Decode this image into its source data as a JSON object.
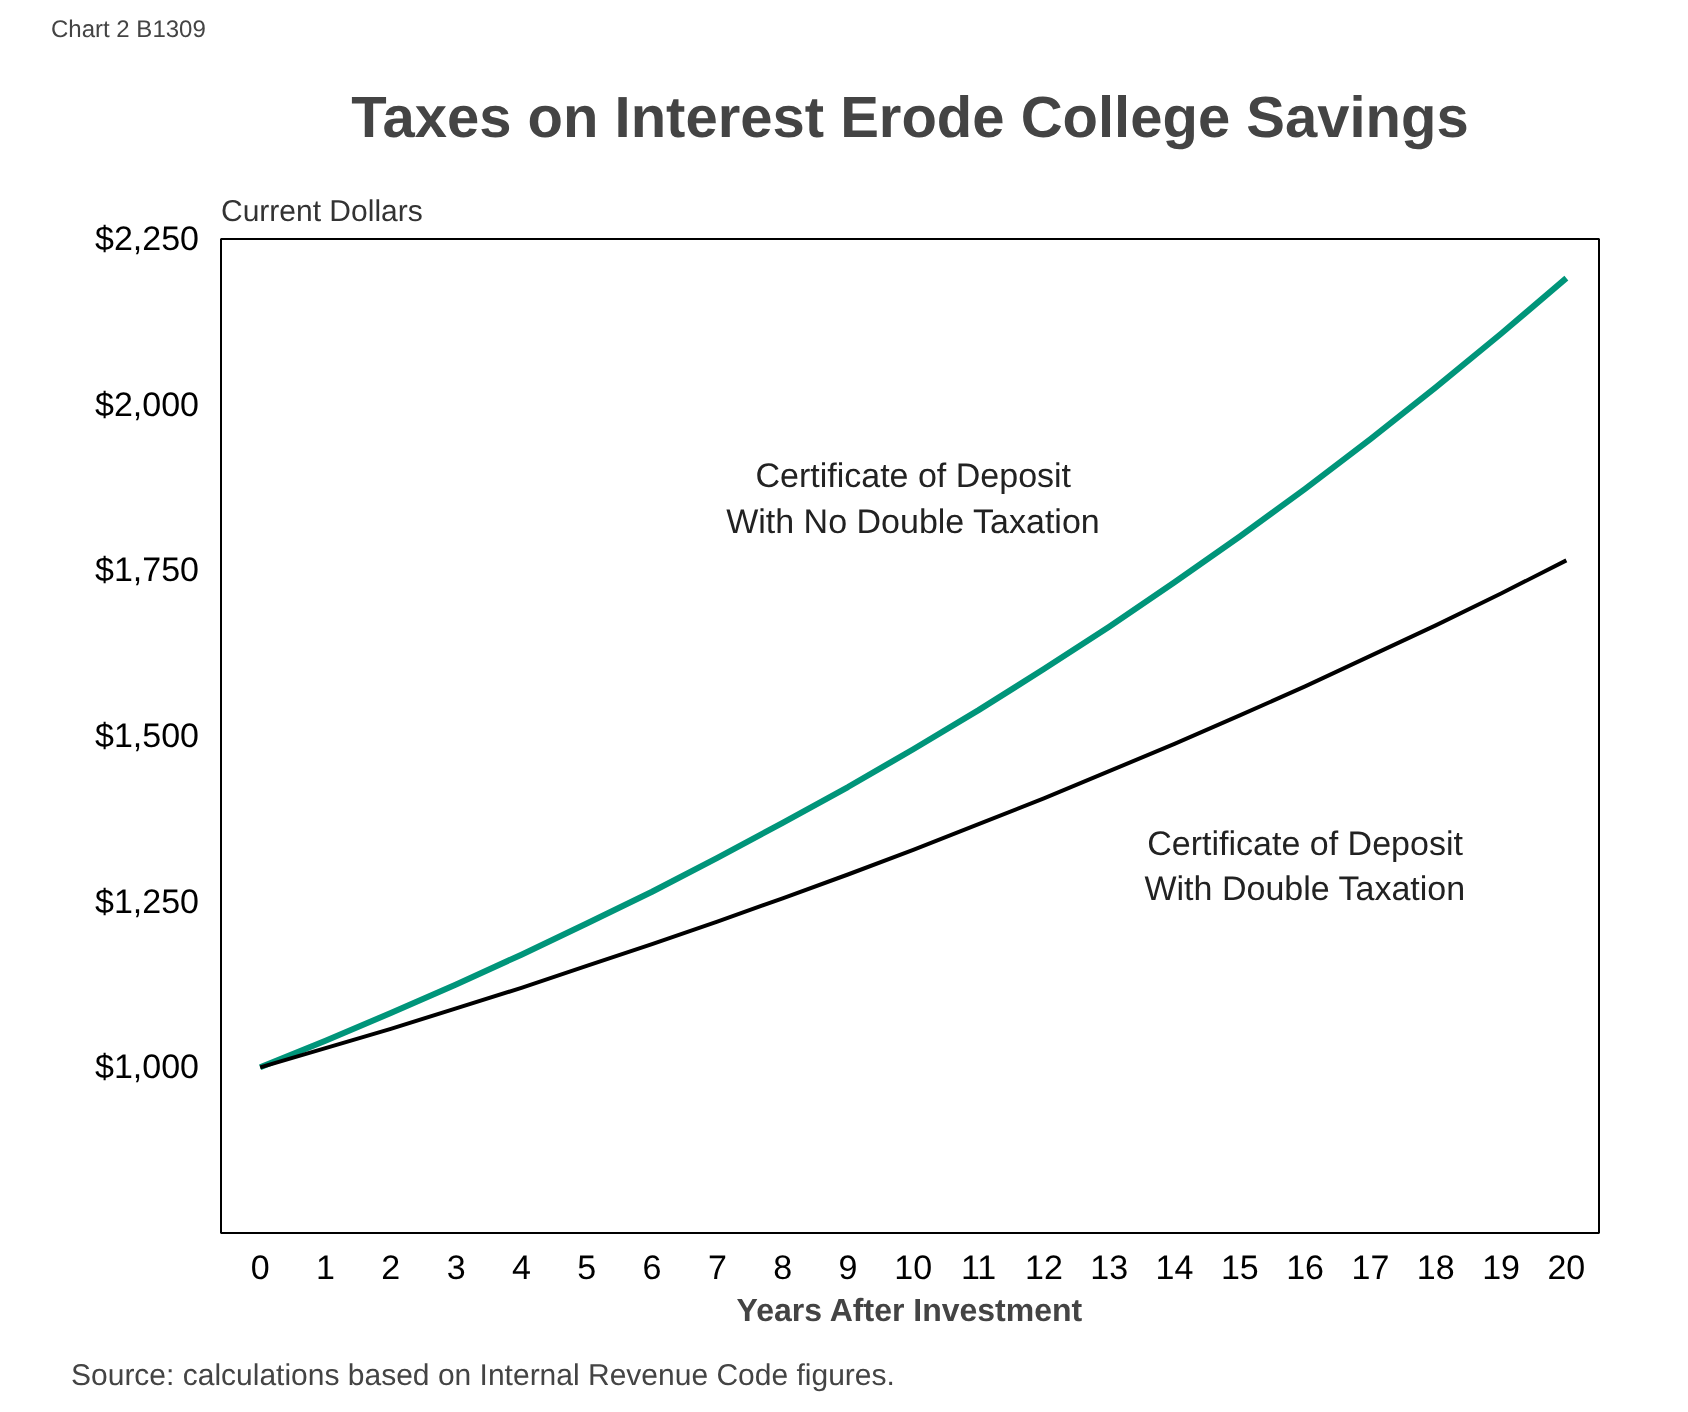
{
  "chart_data": {
    "type": "line",
    "title": "Taxes on Interest Erode College Savings",
    "xlabel": "Years After Investment",
    "ylabel": "Current Dollars",
    "x": [
      0,
      1,
      2,
      3,
      4,
      5,
      6,
      7,
      8,
      9,
      10,
      11,
      12,
      13,
      14,
      15,
      16,
      17,
      18,
      19,
      20
    ],
    "series": [
      {
        "name": "Certificate of Deposit\nWith No Double Taxation",
        "color": "#00957a",
        "values": [
          1000,
          1040,
          1082,
          1125,
          1170,
          1217,
          1265,
          1316,
          1369,
          1423,
          1480,
          1539,
          1601,
          1665,
          1732,
          1801,
          1873,
          1948,
          2026,
          2107,
          2191
        ]
      },
      {
        "name": "Certificate of Deposit\nWith Double Taxation",
        "color": "#000000",
        "values": [
          1000,
          1029,
          1058,
          1089,
          1120,
          1153,
          1186,
          1220,
          1255,
          1291,
          1328,
          1367,
          1406,
          1447,
          1488,
          1531,
          1575,
          1621,
          1667,
          1715,
          1765
        ]
      }
    ],
    "xlim": [
      -0.6,
      20.5
    ],
    "ylim": [
      750,
      2250
    ],
    "xticks": [
      0,
      1,
      2,
      3,
      4,
      5,
      6,
      7,
      8,
      9,
      10,
      11,
      12,
      13,
      14,
      15,
      16,
      17,
      18,
      19,
      20
    ],
    "yticks": [
      {
        "value": 1000,
        "label": "$1,000"
      },
      {
        "value": 1250,
        "label": "$1,250"
      },
      {
        "value": 1500,
        "label": "$1,500"
      },
      {
        "value": 1750,
        "label": "$1,750"
      },
      {
        "value": 2000,
        "label": "$2,000"
      },
      {
        "value": 2250,
        "label": "$2,250"
      }
    ],
    "grid": false,
    "legend": false,
    "marker": "none",
    "line_style": "solid",
    "annotations": [
      "Chart 2",
      "B1309",
      "Source: calculations based on Internal Revenue Code figures."
    ]
  }
}
